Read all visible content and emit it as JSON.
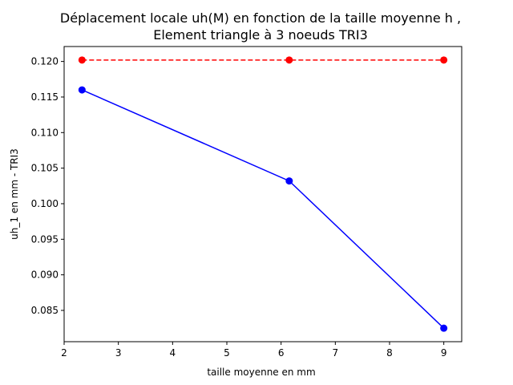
{
  "chart_data": {
    "type": "line",
    "title_line1": "Déplacement locale uh(M) en fonction de la taille moyenne h ,",
    "title_line2": "Element triangle à 3 noeuds TRI3",
    "xlabel": "taille moyenne en mm",
    "ylabel": "uh_1 en mm - TRI3",
    "xlim": [
      2,
      9.33
    ],
    "ylim": [
      0.0806,
      0.1221
    ],
    "xticks": [
      2,
      3,
      4,
      5,
      6,
      7,
      8,
      9
    ],
    "yticks": [
      0.085,
      0.09,
      0.095,
      0.1,
      0.105,
      0.11,
      0.115,
      0.12
    ],
    "ytick_labels": [
      "0.085",
      "0.090",
      "0.095",
      "0.100",
      "0.105",
      "0.110",
      "0.115",
      "0.120"
    ],
    "grid": false,
    "series": [
      {
        "color": "#0000ff",
        "linestyle": "solid",
        "marker": "circle",
        "x": [
          2.33,
          6.15,
          9.0
        ],
        "y": [
          0.116,
          0.1032,
          0.0825
        ]
      },
      {
        "color": "#ff0000",
        "linestyle": "dashed",
        "marker": "circle",
        "x": [
          2.33,
          6.15,
          9.0
        ],
        "y": [
          0.1202,
          0.1202,
          0.1202
        ]
      }
    ]
  }
}
